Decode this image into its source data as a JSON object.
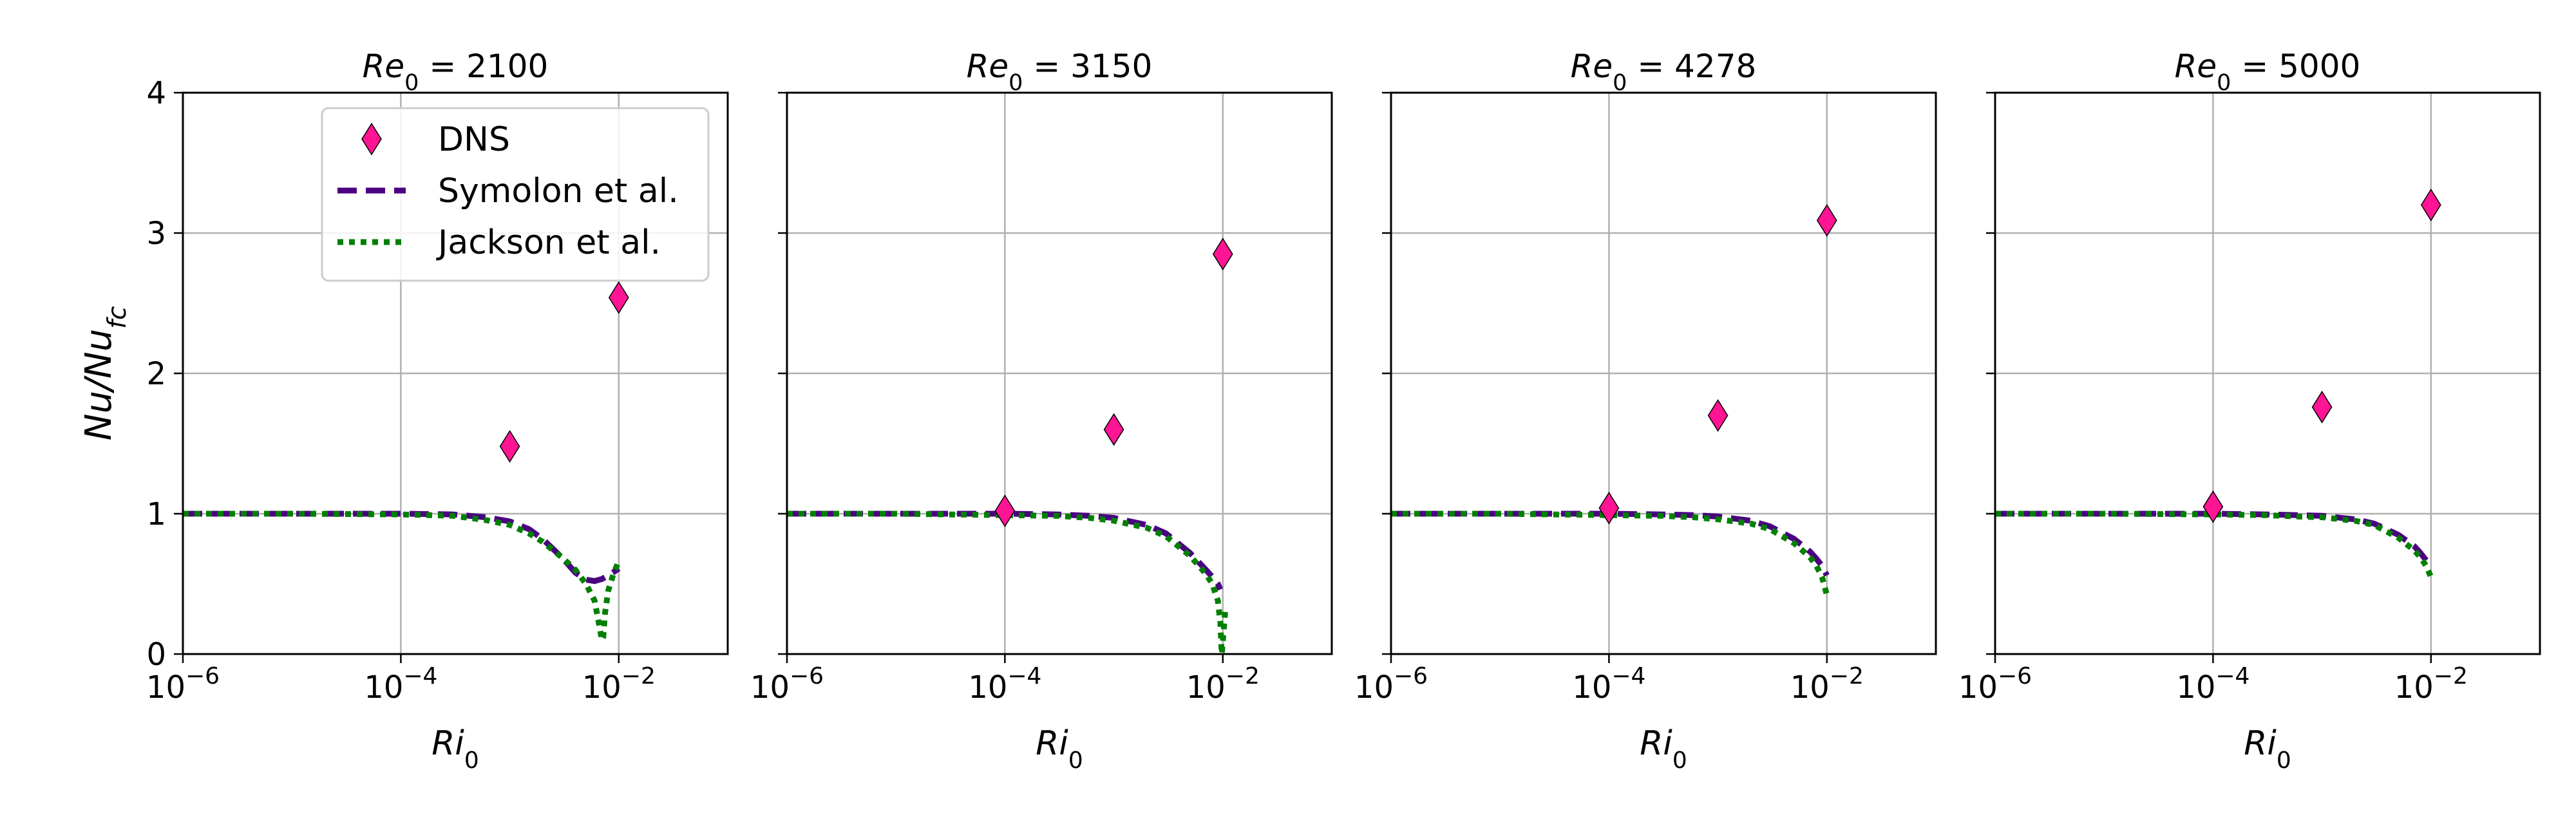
{
  "chart_data": [
    {
      "type": "scatter",
      "title_var": "Re",
      "title_sub": "0",
      "title_value": "2100",
      "xscale": "log",
      "xlim": [
        -6,
        -1
      ],
      "ylim": [
        0,
        4
      ],
      "x_ticks": [
        -6,
        -4,
        -2
      ],
      "y_ticks": [
        0,
        1,
        2,
        3,
        4
      ],
      "grid": true,
      "dns": [
        {
          "x": 0.001,
          "y": 1.48
        },
        {
          "x": 0.01,
          "y": 2.54
        }
      ],
      "symolon": [
        [
          1e-06,
          1.0
        ],
        [
          1e-05,
          1.0
        ],
        [
          0.0001,
          1.0
        ],
        [
          0.0003,
          0.995
        ],
        [
          0.0006,
          0.975
        ],
        [
          0.001,
          0.945
        ],
        [
          0.0015,
          0.89
        ],
        [
          0.002,
          0.82
        ],
        [
          0.003,
          0.69
        ],
        [
          0.004,
          0.58
        ],
        [
          0.005,
          0.53
        ],
        [
          0.006,
          0.52
        ],
        [
          0.007,
          0.535
        ],
        [
          0.008,
          0.56
        ],
        [
          0.009,
          0.585
        ],
        [
          0.01,
          0.61
        ]
      ],
      "jackson": [
        [
          1e-06,
          1.0
        ],
        [
          1e-05,
          1.0
        ],
        [
          0.0001,
          0.995
        ],
        [
          0.0003,
          0.985
        ],
        [
          0.0006,
          0.955
        ],
        [
          0.001,
          0.92
        ],
        [
          0.0015,
          0.86
        ],
        [
          0.002,
          0.8
        ],
        [
          0.003,
          0.69
        ],
        [
          0.004,
          0.6
        ],
        [
          0.005,
          0.5
        ],
        [
          0.006,
          0.38
        ],
        [
          0.0065,
          0.24
        ],
        [
          0.007,
          0.1
        ],
        [
          0.0072,
          0.12
        ],
        [
          0.0075,
          0.3
        ],
        [
          0.008,
          0.45
        ],
        [
          0.009,
          0.58
        ],
        [
          0.01,
          0.66
        ]
      ]
    },
    {
      "type": "scatter",
      "title_var": "Re",
      "title_sub": "0",
      "title_value": "3150",
      "xscale": "log",
      "xlim": [
        -6,
        -1
      ],
      "ylim": [
        0,
        4
      ],
      "x_ticks": [
        -6,
        -4,
        -2
      ],
      "y_ticks": [
        0,
        1,
        2,
        3,
        4
      ],
      "grid": true,
      "dns": [
        {
          "x": 0.0001,
          "y": 1.02
        },
        {
          "x": 0.001,
          "y": 1.6
        },
        {
          "x": 0.01,
          "y": 2.85
        }
      ],
      "symolon": [
        [
          1e-06,
          1.0
        ],
        [
          1e-05,
          1.0
        ],
        [
          0.0001,
          1.0
        ],
        [
          0.0003,
          0.995
        ],
        [
          0.0006,
          0.985
        ],
        [
          0.001,
          0.97
        ],
        [
          0.002,
          0.92
        ],
        [
          0.003,
          0.86
        ],
        [
          0.005,
          0.72
        ],
        [
          0.007,
          0.6
        ],
        [
          0.008,
          0.55
        ],
        [
          0.009,
          0.5
        ],
        [
          0.0095,
          0.46
        ]
      ],
      "jackson": [
        [
          1e-06,
          1.0
        ],
        [
          1e-05,
          1.0
        ],
        [
          0.0001,
          0.99
        ],
        [
          0.0003,
          0.985
        ],
        [
          0.0006,
          0.97
        ],
        [
          0.001,
          0.95
        ],
        [
          0.002,
          0.9
        ],
        [
          0.003,
          0.84
        ],
        [
          0.005,
          0.7
        ],
        [
          0.007,
          0.57
        ],
        [
          0.008,
          0.5
        ],
        [
          0.009,
          0.38
        ],
        [
          0.0095,
          0.22
        ],
        [
          0.0097,
          0.05
        ],
        [
          0.0098,
          0.0
        ],
        [
          0.0102,
          0.18
        ],
        [
          0.0105,
          0.3
        ]
      ]
    },
    {
      "type": "scatter",
      "title_var": "Re",
      "title_sub": "0",
      "title_value": "4278",
      "xscale": "log",
      "xlim": [
        -6,
        -1
      ],
      "ylim": [
        0,
        4
      ],
      "x_ticks": [
        -6,
        -4,
        -2
      ],
      "y_ticks": [
        0,
        1,
        2,
        3,
        4
      ],
      "grid": true,
      "dns": [
        {
          "x": 0.0001,
          "y": 1.04
        },
        {
          "x": 0.001,
          "y": 1.7
        },
        {
          "x": 0.01,
          "y": 3.09
        }
      ],
      "symolon": [
        [
          1e-06,
          1.0
        ],
        [
          1e-05,
          1.0
        ],
        [
          0.0001,
          1.0
        ],
        [
          0.0003,
          0.995
        ],
        [
          0.0006,
          0.99
        ],
        [
          0.001,
          0.98
        ],
        [
          0.002,
          0.95
        ],
        [
          0.003,
          0.91
        ],
        [
          0.005,
          0.82
        ],
        [
          0.007,
          0.73
        ],
        [
          0.008,
          0.68
        ],
        [
          0.009,
          0.63
        ],
        [
          0.01,
          0.56
        ]
      ],
      "jackson": [
        [
          1e-06,
          1.0
        ],
        [
          1e-05,
          1.0
        ],
        [
          0.0001,
          0.99
        ],
        [
          0.0003,
          0.985
        ],
        [
          0.0006,
          0.975
        ],
        [
          0.001,
          0.96
        ],
        [
          0.002,
          0.93
        ],
        [
          0.003,
          0.89
        ],
        [
          0.005,
          0.79
        ],
        [
          0.007,
          0.69
        ],
        [
          0.008,
          0.63
        ],
        [
          0.009,
          0.55
        ],
        [
          0.01,
          0.42
        ]
      ]
    },
    {
      "type": "scatter",
      "title_var": "Re",
      "title_sub": "0",
      "title_value": "5000",
      "xscale": "log",
      "xlim": [
        -6,
        -1
      ],
      "ylim": [
        0,
        4
      ],
      "x_ticks": [
        -6,
        -4,
        -2
      ],
      "y_ticks": [
        0,
        1,
        2,
        3,
        4
      ],
      "grid": true,
      "dns": [
        {
          "x": 0.0001,
          "y": 1.05
        },
        {
          "x": 0.001,
          "y": 1.76
        },
        {
          "x": 0.01,
          "y": 3.2
        }
      ],
      "symolon": [
        [
          1e-06,
          1.0
        ],
        [
          1e-05,
          1.0
        ],
        [
          0.0001,
          1.0
        ],
        [
          0.0003,
          0.995
        ],
        [
          0.0006,
          0.99
        ],
        [
          0.001,
          0.985
        ],
        [
          0.002,
          0.96
        ],
        [
          0.003,
          0.93
        ],
        [
          0.005,
          0.85
        ],
        [
          0.007,
          0.77
        ],
        [
          0.008,
          0.72
        ],
        [
          0.009,
          0.67
        ],
        [
          0.01,
          0.62
        ]
      ],
      "jackson": [
        [
          1e-06,
          1.0
        ],
        [
          1e-05,
          1.0
        ],
        [
          0.0001,
          0.995
        ],
        [
          0.0003,
          0.99
        ],
        [
          0.0006,
          0.98
        ],
        [
          0.001,
          0.975
        ],
        [
          0.002,
          0.95
        ],
        [
          0.003,
          0.92
        ],
        [
          0.005,
          0.83
        ],
        [
          0.007,
          0.74
        ],
        [
          0.008,
          0.69
        ],
        [
          0.009,
          0.63
        ],
        [
          0.01,
          0.55
        ]
      ]
    }
  ],
  "axes": {
    "ylabel": {
      "main": "Nu/Nu",
      "sub": "fc"
    },
    "xlabel": {
      "main": "Ri",
      "sub": "0"
    },
    "tick_base": "10"
  },
  "legend": {
    "placement": "upper-left of first panel",
    "entries": [
      {
        "label": "DNS",
        "marker": "diamond",
        "color": "#ff1493"
      },
      {
        "label": "Symolon et al.",
        "style": "dashed",
        "color": "#4b0082"
      },
      {
        "label": "Jackson et al.",
        "style": "dotted",
        "color": "#008000"
      }
    ]
  },
  "colors": {
    "dns_fill": "#ff1493",
    "dns_edge": "#000000",
    "symolon": "#4b0082",
    "jackson": "#008000",
    "grid": "#b0b0b0",
    "legend_edge": "#cccccc"
  }
}
